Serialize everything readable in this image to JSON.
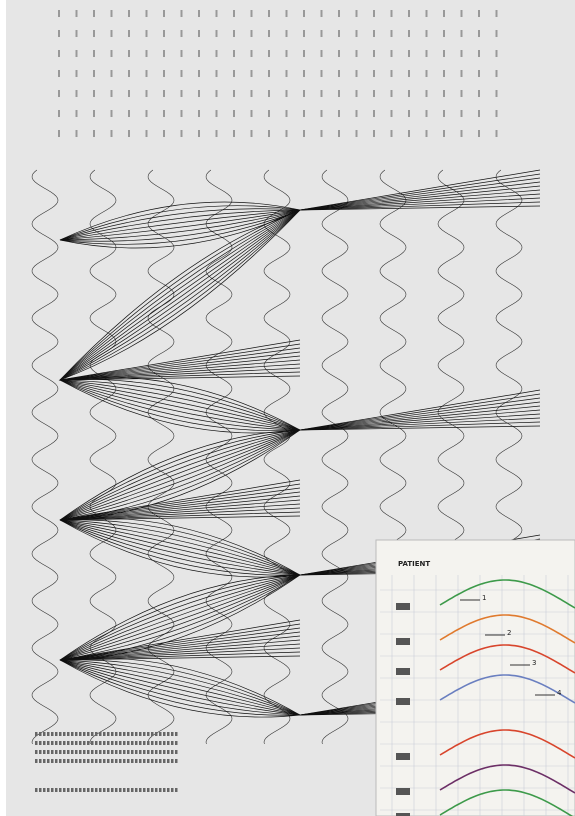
{
  "inset": {
    "title": "PATIENT",
    "markers": [
      "1",
      "2",
      "3",
      "4"
    ]
  }
}
